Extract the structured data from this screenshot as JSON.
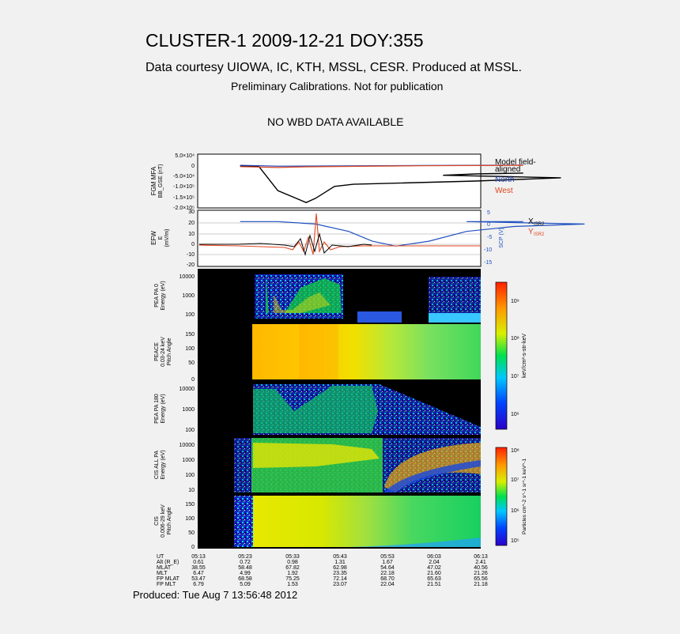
{
  "header": {
    "title": "CLUSTER-1 2009-12-21 DOY:355",
    "courtesy": "Data courtesy UIOWA, IC, KTH, MSSL, CESR. Produced at MSSL.",
    "preliminary": "Preliminary Calibrations. Not for publication",
    "wbd_notice": "NO WBD DATA AVAILABLE"
  },
  "footer": {
    "produced": "Produced: Tue Aug  7 13:56:48 2012"
  },
  "chart_data": [
    {
      "type": "line",
      "panel": "fgm",
      "ylabel": "FGM MFA",
      "ylabel2": "BB_GSE (nT)",
      "yticks": [
        "5.0×10⁴",
        "0",
        "-5.0×10⁴",
        "-1.0×10⁵",
        "-1.5×10⁵",
        "-2.0×10⁵"
      ],
      "ylim": [
        -200000,
        50000
      ],
      "legend": [
        "Model field-",
        "aligned",
        "North",
        "West"
      ],
      "colors": {
        "model": "#000000",
        "north": "#1f3fb0",
        "west": "#e0451e"
      },
      "series": [
        {
          "name": "Model field-aligned",
          "x": [
            5.22,
            5.26,
            5.3,
            5.36,
            5.38,
            5.42,
            5.46,
            5.55,
            5.72,
            5.9,
            6.05,
            6.12,
            6.22
          ],
          "values": [
            -5000,
            -8000,
            -120000,
            -175000,
            -155000,
            -100000,
            -90000,
            -85000,
            -75000,
            -60000,
            -48000,
            -42000,
            -38000
          ]
        },
        {
          "name": "North",
          "x": [
            5.22,
            5.3,
            5.4,
            5.6,
            6.22
          ],
          "values": [
            -2000,
            -6000,
            -5000,
            -3000,
            -1000
          ]
        },
        {
          "name": "West",
          "x": [
            5.22,
            5.3,
            5.36,
            5.6,
            6.22
          ],
          "values": [
            -8000,
            -12000,
            -9000,
            -4000,
            -2000
          ]
        }
      ]
    },
    {
      "type": "line",
      "panel": "efw",
      "ylabel": "EFW",
      "ylabel2": "E",
      "ylabel3": "(mV/m)",
      "yticks": [
        "30",
        "20",
        "10",
        "0",
        "-10",
        "-20"
      ],
      "ylim": [
        -22,
        30
      ],
      "y2label": "SCP (V)",
      "y2ticks": [
        "5",
        "0",
        "-5",
        "-10",
        "-15"
      ],
      "legend": [
        "X",
        "ISR2",
        "Y",
        "ISR2"
      ],
      "colors": {
        "scp": "#1f4fc0",
        "x": "#000000",
        "y": "#e0451e"
      },
      "series": [
        {
          "name": "SCP",
          "x": [
            5.22,
            5.3,
            5.38,
            5.45,
            5.5,
            5.55,
            5.62,
            5.7,
            5.8,
            5.95,
            6.1,
            6.22
          ],
          "values": [
            2,
            2,
            1,
            -2,
            -6,
            -8,
            -6,
            -2,
            0,
            1,
            2,
            2
          ]
        }
      ]
    },
    {
      "type": "heatmap",
      "panel": "pea_pa0",
      "ylabel": "PEA PA 0",
      "ylabel2": "Energy (eV)",
      "yticks": [
        "10000",
        "1000",
        "100"
      ]
    },
    {
      "type": "heatmap",
      "panel": "peace_pitch",
      "ylabel": "PEACE",
      "ylabel2": "0.03-24 keV",
      "ylabel3": "Pitch Angle",
      "yticks": [
        "150",
        "100",
        "50",
        "0"
      ],
      "colorbar": {
        "label": "keV/cm²-s-str-keV",
        "ticks": [
          "10⁹",
          "10⁸",
          "10⁷",
          "10⁶"
        ]
      }
    },
    {
      "type": "heatmap",
      "panel": "pea_pa180",
      "ylabel": "PEA PA 180",
      "ylabel2": "Energy (eV)",
      "yticks": [
        "10000",
        "1000",
        "100"
      ]
    },
    {
      "type": "heatmap",
      "panel": "cis_all",
      "ylabel": "CIS ALL PA",
      "ylabel2": "Energy (eV)",
      "yticks": [
        "10000",
        "1000",
        "100",
        "10"
      ]
    },
    {
      "type": "heatmap",
      "panel": "cis_pitch",
      "ylabel": "CIS",
      "ylabel2": "0.006-29 keV",
      "ylabel3": "Pitch Angle",
      "yticks": [
        "150",
        "100",
        "50",
        "0"
      ],
      "colorbar": {
        "label": "Particles cm^-2 s^-1 sr^-1 keV^-1",
        "ticks": [
          "10⁸",
          "10⁷",
          "10⁶",
          "10⁵"
        ]
      }
    },
    {
      "type": "table",
      "panel": "ephemeris",
      "row_labels": [
        "UT",
        "Alt (R_E)",
        "MLAT",
        "MLT",
        "FP MLAT",
        "FP MLT"
      ],
      "columns": [
        {
          "ut": "05:13",
          "values": [
            "0.61",
            "38.55",
            "6.47",
            "53.47",
            "6.79"
          ]
        },
        {
          "ut": "05:23",
          "values": [
            "0.72",
            "58.48",
            "4.99",
            "68.58",
            "5.09"
          ]
        },
        {
          "ut": "05:33",
          "values": [
            "0.98",
            "67.82",
            "1.92",
            "75.25",
            "1.53"
          ]
        },
        {
          "ut": "05:43",
          "values": [
            "1.31",
            "62.98",
            "23.35",
            "72.14",
            "23.07"
          ]
        },
        {
          "ut": "05:53",
          "values": [
            "1.67",
            "54.64",
            "22.18",
            "68.70",
            "22.04"
          ]
        },
        {
          "ut": "06:03",
          "values": [
            "2.04",
            "47.02",
            "21.60",
            "65.63",
            "21.51"
          ]
        },
        {
          "ut": "06:13",
          "values": [
            "2.41",
            "40.56",
            "21.26",
            "65.56",
            "21.18"
          ]
        }
      ]
    }
  ]
}
